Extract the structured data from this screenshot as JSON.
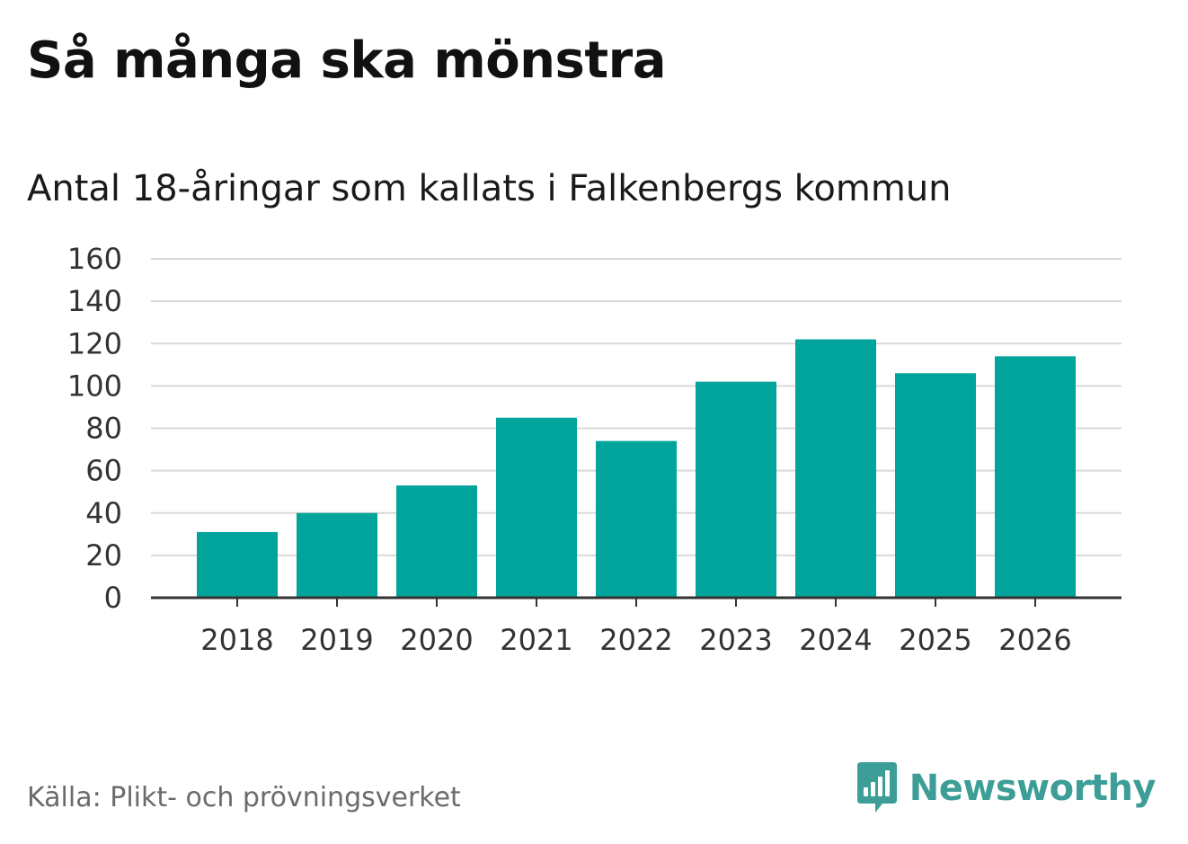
{
  "title": "Så många ska mönstra",
  "subtitle": "Antal 18-åringar som kallats i Falkenbergs kommun",
  "source": "Källa: Plikt- och prövningsverket",
  "brand": {
    "name": "Newsworthy",
    "color": "#3c9e96",
    "icon": "bar-chart-speech-bubble-icon"
  },
  "colors": {
    "bar": "#00a49a",
    "grid": "#d9d9d9",
    "axis": "#333333"
  },
  "chart_data": {
    "type": "bar",
    "title": "Så många ska mönstra",
    "subtitle": "Antal 18-åringar som kallats i Falkenbergs kommun",
    "xlabel": "",
    "ylabel": "",
    "categories": [
      "2018",
      "2019",
      "2020",
      "2021",
      "2022",
      "2023",
      "2024",
      "2025",
      "2026"
    ],
    "values": [
      31,
      40,
      53,
      85,
      74,
      102,
      122,
      106,
      114
    ],
    "ylim": [
      0,
      160
    ],
    "yticks": [
      0,
      20,
      40,
      60,
      80,
      100,
      120,
      140,
      160
    ],
    "grid": true,
    "legend": "none"
  }
}
